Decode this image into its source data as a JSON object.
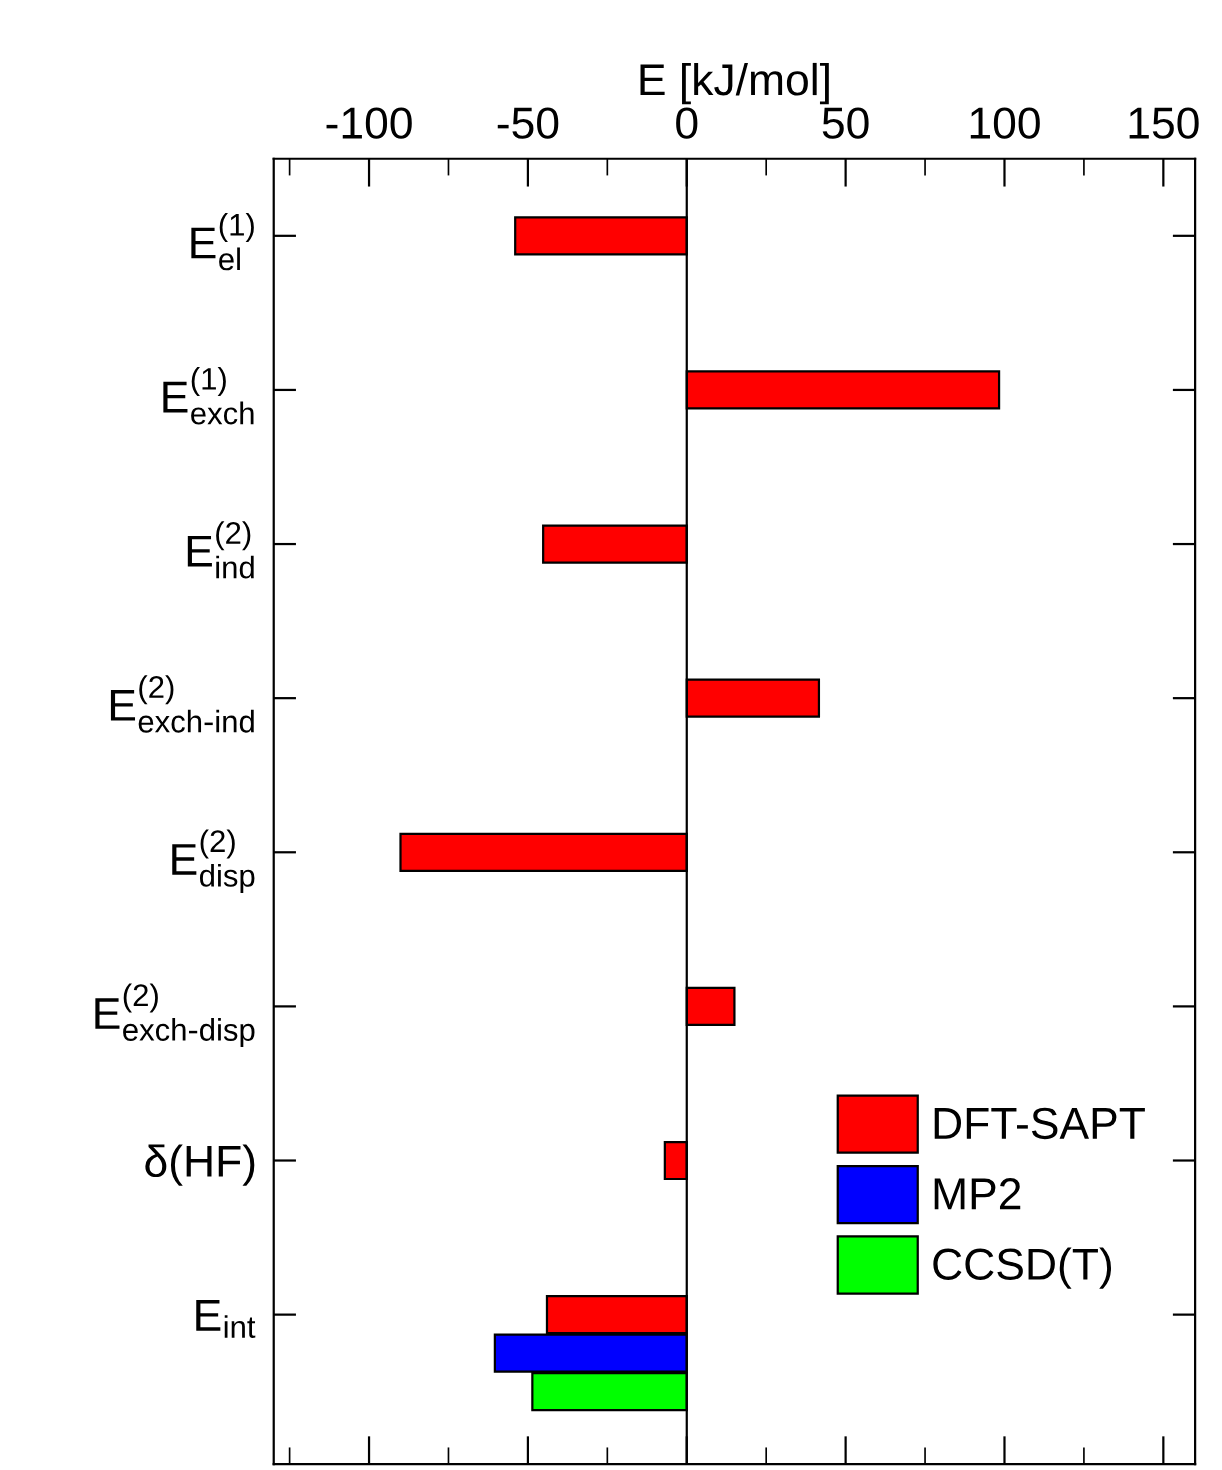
{
  "chart_data": {
    "type": "bar",
    "orientation": "horizontal",
    "xlabel": "E [kJ/mol]",
    "categories": [
      "E$^{(1)}$$_{el}$",
      "E$^{(1)}$$_{exch}$",
      "E$^{(2)}$$_{ind}$",
      "E$^{(2)}$$_{exch-ind}$",
      "E$^{(2)}$$_{disp}$",
      "E$^{(2)}$$_{exch-disp}$",
      "δ(HF)",
      "E$_{int}$"
    ],
    "ref_lines": [
      {
        "axis": "x",
        "value": 0,
        "color": "#000000"
      }
    ],
    "series": [
      {
        "name": "DFT-SAPT",
        "color": "#ff0000",
        "values": [
          -54,
          98.3,
          -45.2,
          41.6,
          -90.1,
          15.0,
          -6.9,
          -44
        ]
      },
      {
        "name": "MP2",
        "color": "#0000ff",
        "values": [
          null,
          null,
          null,
          null,
          null,
          null,
          null,
          -60.4
        ]
      },
      {
        "name": "CCSD(T)",
        "color": "#00ff00",
        "values": [
          null,
          null,
          null,
          null,
          null,
          null,
          null,
          -48.6
        ]
      }
    ],
    "xlim": [
      -130,
      160
    ],
    "xticks": [
      {
        "value": -125,
        "label": null
      },
      -100,
      {
        "value": -75,
        "label": null
      },
      -50,
      {
        "value": -25,
        "label": null
      },
      0,
      {
        "value": 25,
        "label": null
      },
      50,
      {
        "value": 75,
        "label": null
      },
      100,
      {
        "value": 125,
        "label": null
      },
      150
    ],
    "legend": "bottom right",
    "grid": false
  }
}
